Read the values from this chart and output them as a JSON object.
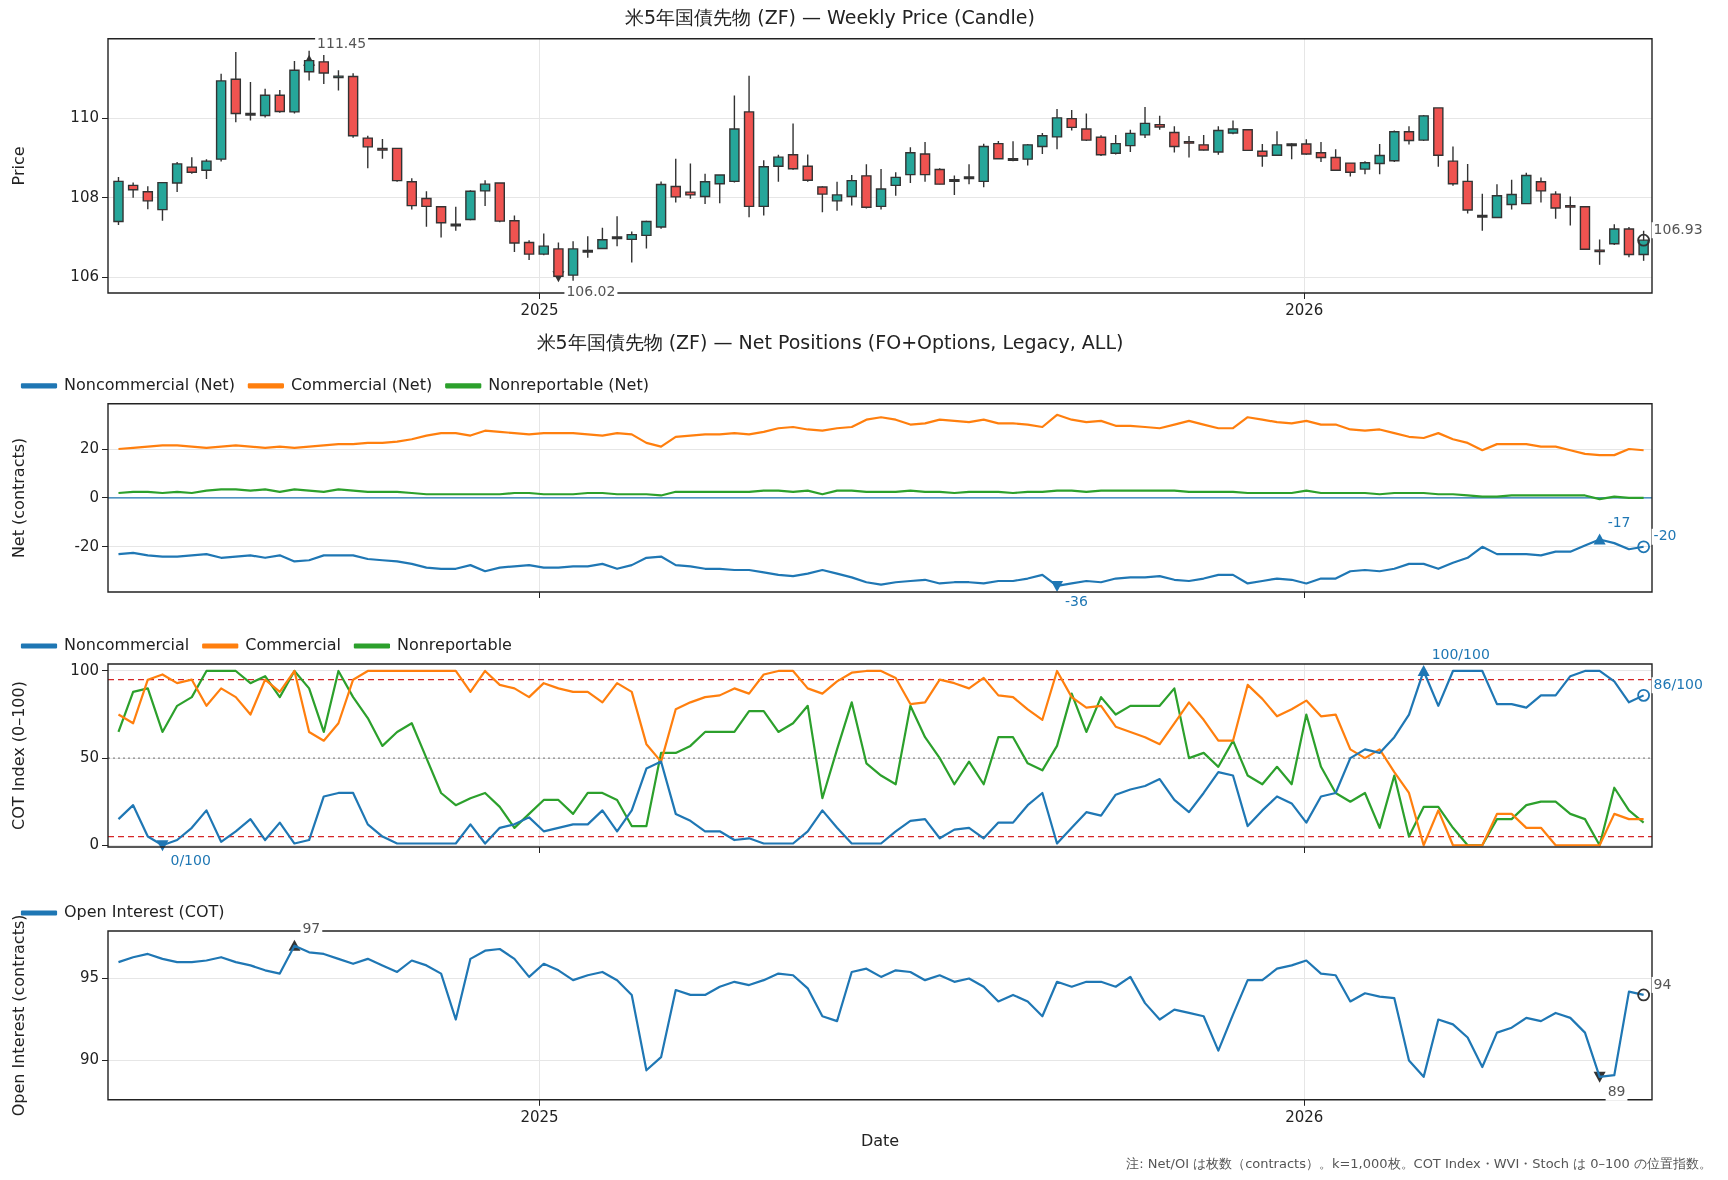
{
  "chart_data": [
    {
      "type": "candlestick",
      "title": "米5年国債先物 (ZF) — Weekly Price (Candle)",
      "ylabel": "Price",
      "x": [
        "2024-06-14",
        "2024-06-21",
        "2024-06-28",
        "2024-07-05",
        "2024-07-12",
        "2024-07-19",
        "2024-07-26",
        "2024-08-02",
        "2024-08-09",
        "2024-08-16",
        "2024-08-23",
        "2024-08-30",
        "2024-09-06",
        "2024-09-13",
        "2024-09-20",
        "2024-09-27",
        "2024-10-04",
        "2024-10-11",
        "2024-10-18",
        "2024-10-25",
        "2024-11-01",
        "2024-11-08",
        "2024-11-15",
        "2024-11-22",
        "2024-11-29",
        "2024-12-06",
        "2024-12-13",
        "2024-12-20",
        "2024-12-27",
        "2025-01-03",
        "2025-01-10",
        "2025-01-17",
        "2025-01-24",
        "2025-01-31",
        "2025-02-07",
        "2025-02-14",
        "2025-02-21",
        "2025-02-28",
        "2025-03-07",
        "2025-03-14",
        "2025-03-21",
        "2025-03-28",
        "2025-04-04",
        "2025-04-11",
        "2025-04-18",
        "2025-04-25",
        "2025-05-02",
        "2025-05-09",
        "2025-05-16",
        "2025-05-23",
        "2025-05-30",
        "2025-06-06",
        "2025-06-13",
        "2025-06-20",
        "2025-06-27",
        "2025-07-04",
        "2025-07-11",
        "2025-07-18",
        "2025-07-25",
        "2025-08-01",
        "2025-08-08",
        "2025-08-15",
        "2025-08-22",
        "2025-08-29",
        "2025-09-05",
        "2025-09-12",
        "2025-09-19",
        "2025-09-26",
        "2025-10-03",
        "2025-10-10",
        "2025-10-17",
        "2025-10-24",
        "2025-10-31",
        "2025-11-07",
        "2025-11-14",
        "2025-11-21",
        "2025-11-28",
        "2025-12-05",
        "2025-12-12",
        "2025-12-19",
        "2025-12-26",
        "2026-01-02",
        "2026-01-09",
        "2026-01-16",
        "2026-01-23",
        "2026-01-30",
        "2026-02-06",
        "2026-02-13",
        "2026-02-20",
        "2026-02-27",
        "2026-03-06",
        "2026-03-13",
        "2026-03-20",
        "2026-03-27",
        "2026-04-03",
        "2026-04-10",
        "2026-04-17",
        "2026-04-24",
        "2026-05-01",
        "2026-05-08",
        "2026-05-15",
        "2026-05-22",
        "2026-05-29",
        "2026-06-05",
        "2026-06-12"
      ],
      "ohlc": [
        [
          107.4,
          108.52,
          107.31,
          108.41
        ],
        [
          108.31,
          108.38,
          108.0,
          108.2
        ],
        [
          108.15,
          108.29,
          107.71,
          107.92
        ],
        [
          107.7,
          108.38,
          107.42,
          108.38
        ],
        [
          108.37,
          108.9,
          108.14,
          108.85
        ],
        [
          108.77,
          109.02,
          108.6,
          108.64
        ],
        [
          108.69,
          108.97,
          108.47,
          108.92
        ],
        [
          108.97,
          111.12,
          108.91,
          110.94
        ],
        [
          110.98,
          111.67,
          109.9,
          110.12
        ],
        [
          110.1,
          110.91,
          109.94,
          110.12
        ],
        [
          110.07,
          110.74,
          110.02,
          110.58
        ],
        [
          110.58,
          110.71,
          110.14,
          110.17
        ],
        [
          110.16,
          111.44,
          110.12,
          111.21
        ],
        [
          111.17,
          111.7,
          110.95,
          111.45
        ],
        [
          111.42,
          111.59,
          110.86,
          111.14
        ],
        [
          111.03,
          111.21,
          110.7,
          111.06
        ],
        [
          111.05,
          111.13,
          109.51,
          109.56
        ],
        [
          109.5,
          109.56,
          108.74,
          109.28
        ],
        [
          109.24,
          109.48,
          108.98,
          109.2
        ],
        [
          109.24,
          109.24,
          108.4,
          108.43
        ],
        [
          108.4,
          108.49,
          107.7,
          107.8
        ],
        [
          107.98,
          108.16,
          107.27,
          107.78
        ],
        [
          107.77,
          107.77,
          107.0,
          107.37
        ],
        [
          107.33,
          107.77,
          107.17,
          107.31
        ],
        [
          107.45,
          108.19,
          107.43,
          108.16
        ],
        [
          108.17,
          108.44,
          107.79,
          108.34
        ],
        [
          108.37,
          108.37,
          107.38,
          107.41
        ],
        [
          107.42,
          107.55,
          106.63,
          106.86
        ],
        [
          106.87,
          106.93,
          106.43,
          106.58
        ],
        [
          106.58,
          107.1,
          106.55,
          106.78
        ],
        [
          106.71,
          106.87,
          105.98,
          106.02
        ],
        [
          106.05,
          106.9,
          105.91,
          106.71
        ],
        [
          106.64,
          107.03,
          106.49,
          106.67
        ],
        [
          106.72,
          107.24,
          106.71,
          106.94
        ],
        [
          106.99,
          107.53,
          106.78,
          107.01
        ],
        [
          106.95,
          107.15,
          106.37,
          107.07
        ],
        [
          107.05,
          107.42,
          106.72,
          107.4
        ],
        [
          107.26,
          108.41,
          107.22,
          108.33
        ],
        [
          108.28,
          108.98,
          107.88,
          108.02
        ],
        [
          108.14,
          108.86,
          107.97,
          108.07
        ],
        [
          108.03,
          108.6,
          107.84,
          108.4
        ],
        [
          108.35,
          108.57,
          107.86,
          108.57
        ],
        [
          108.41,
          110.57,
          108.38,
          109.73
        ],
        [
          110.16,
          111.07,
          107.51,
          107.78
        ],
        [
          107.78,
          108.94,
          107.55,
          108.78
        ],
        [
          108.79,
          109.08,
          108.4,
          109.02
        ],
        [
          109.08,
          109.87,
          108.7,
          108.73
        ],
        [
          108.79,
          109.09,
          108.4,
          108.44
        ],
        [
          108.27,
          108.29,
          107.63,
          108.09
        ],
        [
          107.92,
          108.4,
          107.67,
          108.07
        ],
        [
          108.03,
          108.57,
          107.8,
          108.43
        ],
        [
          108.55,
          108.84,
          107.73,
          107.76
        ],
        [
          107.78,
          108.72,
          107.7,
          108.22
        ],
        [
          108.31,
          108.64,
          108.05,
          108.51
        ],
        [
          108.58,
          109.27,
          108.37,
          109.13
        ],
        [
          109.1,
          109.4,
          108.4,
          108.58
        ],
        [
          108.71,
          108.74,
          108.34,
          108.34
        ],
        [
          108.45,
          108.56,
          108.07,
          108.43
        ],
        [
          108.5,
          108.84,
          108.34,
          108.52
        ],
        [
          108.41,
          109.36,
          108.26,
          109.29
        ],
        [
          109.36,
          109.43,
          108.98,
          108.98
        ],
        [
          108.98,
          109.42,
          108.92,
          108.95
        ],
        [
          108.97,
          109.35,
          108.81,
          109.33
        ],
        [
          109.29,
          109.63,
          109.1,
          109.56
        ],
        [
          109.53,
          110.23,
          109.22,
          110.01
        ],
        [
          109.99,
          110.21,
          109.69,
          109.77
        ],
        [
          109.73,
          110.12,
          109.43,
          109.45
        ],
        [
          109.52,
          109.57,
          109.05,
          109.08
        ],
        [
          109.12,
          109.58,
          109.09,
          109.36
        ],
        [
          109.31,
          109.71,
          109.15,
          109.62
        ],
        [
          109.58,
          110.28,
          109.5,
          109.87
        ],
        [
          109.84,
          110.06,
          109.71,
          109.78
        ],
        [
          109.64,
          109.8,
          109.14,
          109.29
        ],
        [
          109.41,
          109.55,
          109.01,
          109.38
        ],
        [
          109.33,
          109.58,
          109.19,
          109.2
        ],
        [
          109.15,
          109.8,
          109.08,
          109.69
        ],
        [
          109.63,
          109.94,
          109.6,
          109.73
        ],
        [
          109.71,
          109.73,
          109.19,
          109.19
        ],
        [
          109.17,
          109.35,
          108.78,
          109.05
        ],
        [
          109.07,
          109.67,
          109.07,
          109.33
        ],
        [
          109.33,
          109.37,
          108.97,
          109.35
        ],
        [
          109.35,
          109.47,
          109.08,
          109.1
        ],
        [
          109.13,
          109.4,
          108.9,
          109.01
        ],
        [
          109.01,
          109.22,
          108.69,
          108.69
        ],
        [
          108.87,
          108.87,
          108.53,
          108.64
        ],
        [
          108.72,
          108.92,
          108.59,
          108.88
        ],
        [
          108.86,
          109.35,
          108.59,
          109.06
        ],
        [
          108.93,
          109.69,
          108.9,
          109.66
        ],
        [
          109.66,
          109.8,
          109.34,
          109.44
        ],
        [
          109.45,
          110.08,
          109.43,
          110.06
        ],
        [
          110.26,
          110.26,
          108.78,
          109.07
        ],
        [
          108.92,
          109.29,
          108.3,
          108.35
        ],
        [
          108.41,
          108.85,
          107.6,
          107.69
        ],
        [
          107.55,
          108.1,
          107.17,
          107.53
        ],
        [
          107.5,
          108.34,
          107.5,
          108.05
        ],
        [
          107.83,
          108.45,
          107.7,
          108.08
        ],
        [
          107.85,
          108.63,
          107.85,
          108.56
        ],
        [
          108.4,
          108.51,
          107.88,
          108.17
        ],
        [
          108.09,
          108.16,
          107.47,
          107.74
        ],
        [
          107.8,
          108.03,
          107.3,
          107.79
        ],
        [
          107.77,
          107.77,
          106.7,
          106.7
        ],
        [
          106.68,
          106.95,
          106.31,
          106.66
        ],
        [
          106.84,
          107.33,
          106.81,
          107.21
        ],
        [
          107.21,
          107.26,
          106.5,
          106.57
        ],
        [
          106.57,
          107.17,
          106.41,
          106.93
        ]
      ],
      "xlim": [
        "2024-06-09",
        "2026-06-16"
      ],
      "xticks": [
        "2025",
        "2026"
      ],
      "ylim": [
        105.6,
        112.0
      ],
      "yticks": [
        106,
        108,
        110
      ],
      "grid": true,
      "annotations": [
        {
          "text": "111.45",
          "x": "2024-09-13",
          "y": 111.45
        },
        {
          "text": "106.02",
          "x": "2025-01-10",
          "y": 106.02
        },
        {
          "text": "106.93",
          "x": "2026-06-12",
          "y": 106.93
        }
      ]
    },
    {
      "type": "line",
      "title": "米5年国債先物 (ZF) — Net Positions (FO+Options, Legacy, ALL)",
      "ylabel": "Net (contracts)",
      "x": [
        "2024-06-14",
        "2024-06-21",
        "2024-06-28",
        "2024-07-05",
        "2024-07-12",
        "2024-07-19",
        "2024-07-26",
        "2024-08-02",
        "2024-08-09",
        "2024-08-16",
        "2024-08-23",
        "2024-08-30",
        "2024-09-06",
        "2024-09-13",
        "2024-09-20",
        "2024-09-27",
        "2024-10-04",
        "2024-10-11",
        "2024-10-18",
        "2024-10-25",
        "2024-11-01",
        "2024-11-08",
        "2024-11-15",
        "2024-11-22",
        "2024-11-29",
        "2024-12-06",
        "2024-12-13",
        "2024-12-20",
        "2024-12-27",
        "2025-01-03",
        "2025-01-10",
        "2025-01-17",
        "2025-01-24",
        "2025-01-31",
        "2025-02-07",
        "2025-02-14",
        "2025-02-21",
        "2025-02-28",
        "2025-03-07",
        "2025-03-14",
        "2025-03-21",
        "2025-03-28",
        "2025-04-04",
        "2025-04-11",
        "2025-04-18",
        "2025-04-25",
        "2025-05-02",
        "2025-05-09",
        "2025-05-16",
        "2025-05-23",
        "2025-05-30",
        "2025-06-06",
        "2025-06-13",
        "2025-06-20",
        "2025-06-27",
        "2025-07-04",
        "2025-07-11",
        "2025-07-18",
        "2025-07-25",
        "2025-08-01",
        "2025-08-08",
        "2025-08-15",
        "2025-08-22",
        "2025-08-29",
        "2025-09-05",
        "2025-09-12",
        "2025-09-19",
        "2025-09-26",
        "2025-10-03",
        "2025-10-10",
        "2025-10-17",
        "2025-10-24",
        "2025-10-31",
        "2025-11-07",
        "2025-11-14",
        "2025-11-21",
        "2025-11-28",
        "2025-12-05",
        "2025-12-12",
        "2025-12-19",
        "2025-12-26",
        "2026-01-02",
        "2026-01-09",
        "2026-01-16",
        "2026-01-23",
        "2026-01-30",
        "2026-02-06",
        "2026-02-13",
        "2026-02-20",
        "2026-02-27",
        "2026-03-06",
        "2026-03-13",
        "2026-03-20",
        "2026-03-27",
        "2026-04-03",
        "2026-04-10",
        "2026-04-17",
        "2026-04-24",
        "2026-05-01",
        "2026-05-08",
        "2026-05-15",
        "2026-05-22",
        "2026-05-29",
        "2026-06-05",
        "2026-06-12"
      ],
      "series": [
        {
          "name": "Noncommercial (Net)",
          "color": "#1f77b4",
          "values": [
            -23,
            -22.5,
            -23.5,
            -24,
            -24,
            -23.5,
            -23,
            -24.5,
            -24,
            -23.5,
            -24.5,
            -23.5,
            -26,
            -25.5,
            -23.5,
            -23.5,
            -23.5,
            -25,
            -25.5,
            -26,
            -27,
            -28.5,
            -29,
            -29,
            -27.5,
            -30,
            -28.5,
            -28,
            -27.5,
            -28.5,
            -28.5,
            -28,
            -28,
            -27,
            -29,
            -27.5,
            -24.5,
            -24,
            -27.5,
            -28,
            -29,
            -29,
            -29.5,
            -29.5,
            -30.5,
            -31.5,
            -32,
            -31,
            -29.5,
            -31,
            -32.5,
            -34.5,
            -35.5,
            -34.5,
            -34,
            -33.5,
            -35,
            -34.5,
            -34.5,
            -35,
            -34,
            -34,
            -33,
            -31.5,
            -36,
            -35,
            -34,
            -34.5,
            -33,
            -32.5,
            -32.5,
            -32,
            -33.5,
            -34,
            -33,
            -31.5,
            -31.5,
            -35,
            -34,
            -33,
            -33.5,
            -35,
            -33,
            -33,
            -30,
            -29.5,
            -30,
            -29,
            -27,
            -27,
            -29,
            -26.5,
            -24.5,
            -20,
            -23,
            -23,
            -23,
            -23.5,
            -22,
            -22,
            -19.5,
            -17,
            -18.5,
            -21,
            -20
          ]
        },
        {
          "name": "Commercial (Net)",
          "color": "#ff7f0e",
          "values": [
            20,
            20.5,
            21,
            21.5,
            21.5,
            21,
            20.5,
            21,
            21.5,
            21,
            20.5,
            21,
            20.5,
            21,
            21.5,
            22,
            22,
            22.5,
            22.5,
            23,
            24,
            25.5,
            26.5,
            26.5,
            25.5,
            27.5,
            27,
            26.5,
            26,
            26.5,
            26.5,
            26.5,
            26,
            25.5,
            26.5,
            26,
            22.5,
            21,
            25,
            25.5,
            26,
            26,
            26.5,
            26,
            27,
            28.5,
            29,
            28,
            27.5,
            28.5,
            29,
            32,
            33,
            32,
            30,
            30.5,
            32,
            31.5,
            31,
            32,
            30.5,
            30.5,
            30,
            29,
            34,
            32,
            31,
            31.5,
            29.5,
            29.5,
            29,
            28.5,
            30,
            31.5,
            30,
            28.5,
            28.5,
            33,
            32,
            31,
            30.5,
            31.5,
            30,
            30,
            28,
            27.5,
            28,
            26.5,
            25,
            24.5,
            26.5,
            24,
            22.5,
            19.5,
            22,
            22,
            22,
            21,
            21,
            19.5,
            18,
            17.5,
            17.5,
            20,
            19.5
          ]
        },
        {
          "name": "Nonreportable (Net)",
          "color": "#2ca02c",
          "values": [
            2,
            2.5,
            2.5,
            2,
            2.5,
            2,
            3,
            3.5,
            3.5,
            3,
            3.5,
            2.5,
            3.5,
            3,
            2.5,
            3.5,
            3,
            2.5,
            2.5,
            2.5,
            2,
            1.5,
            1.5,
            1.5,
            1.5,
            1.5,
            1.5,
            2,
            2,
            1.5,
            1.5,
            1.5,
            2,
            2,
            1.5,
            1.5,
            1.5,
            1,
            2.5,
            2.5,
            2.5,
            2.5,
            2.5,
            2.5,
            3,
            3,
            2.5,
            3,
            1.5,
            3,
            3,
            2.5,
            2.5,
            2.5,
            3,
            2.5,
            2.5,
            2,
            2.5,
            2.5,
            2.5,
            2,
            2.5,
            2.5,
            3,
            3,
            2.5,
            3,
            3,
            3,
            3,
            3,
            3,
            2.5,
            2.5,
            2.5,
            2.5,
            2,
            2,
            2,
            2,
            3,
            2,
            2,
            2,
            2,
            1.5,
            2,
            2,
            2,
            1.5,
            1.5,
            1,
            0.5,
            0.5,
            1,
            1,
            1,
            1,
            1,
            1,
            -0.5,
            0.5,
            0,
            0
          ]
        }
      ],
      "xlim": [
        "2024-06-09",
        "2026-06-16"
      ],
      "xticks": [
        "2025",
        "2026"
      ],
      "ylim": [
        -38.5,
        38.5
      ],
      "yticks": [
        -20,
        0,
        20
      ],
      "grid": true,
      "legend": "top left",
      "tick_labels": "y",
      "ref_lines": [
        {
          "axis": "y",
          "value": 0,
          "color": "#1f77b4",
          "line_style": "solid"
        }
      ],
      "annotations": [
        {
          "text": "-17",
          "x": "2026-05-22",
          "y": -17
        },
        {
          "text": "-36",
          "x": "2025-09-05",
          "y": -36
        },
        {
          "text": "-20",
          "x": "2026-06-12",
          "y": -20
        }
      ]
    },
    {
      "type": "line",
      "ylabel": "COT Index (0–100)",
      "x": [
        "2024-06-14",
        "2024-06-21",
        "2024-06-28",
        "2024-07-05",
        "2024-07-12",
        "2024-07-19",
        "2024-07-26",
        "2024-08-02",
        "2024-08-09",
        "2024-08-16",
        "2024-08-23",
        "2024-08-30",
        "2024-09-06",
        "2024-09-13",
        "2024-09-20",
        "2024-09-27",
        "2024-10-04",
        "2024-10-11",
        "2024-10-18",
        "2024-10-25",
        "2024-11-01",
        "2024-11-08",
        "2024-11-15",
        "2024-11-22",
        "2024-11-29",
        "2024-12-06",
        "2024-12-13",
        "2024-12-20",
        "2024-12-27",
        "2025-01-03",
        "2025-01-10",
        "2025-01-17",
        "2025-01-24",
        "2025-01-31",
        "2025-02-07",
        "2025-02-14",
        "2025-02-21",
        "2025-02-28",
        "2025-03-07",
        "2025-03-14",
        "2025-03-21",
        "2025-03-28",
        "2025-04-04",
        "2025-04-11",
        "2025-04-18",
        "2025-04-25",
        "2025-05-02",
        "2025-05-09",
        "2025-05-16",
        "2025-05-23",
        "2025-05-30",
        "2025-06-06",
        "2025-06-13",
        "2025-06-20",
        "2025-06-27",
        "2025-07-04",
        "2025-07-11",
        "2025-07-18",
        "2025-07-25",
        "2025-08-01",
        "2025-08-08",
        "2025-08-15",
        "2025-08-22",
        "2025-08-29",
        "2025-09-05",
        "2025-09-12",
        "2025-09-19",
        "2025-09-26",
        "2025-10-03",
        "2025-10-10",
        "2025-10-17",
        "2025-10-24",
        "2025-10-31",
        "2025-11-07",
        "2025-11-14",
        "2025-11-21",
        "2025-11-28",
        "2025-12-05",
        "2025-12-12",
        "2025-12-19",
        "2025-12-26",
        "2026-01-02",
        "2026-01-09",
        "2026-01-16",
        "2026-01-23",
        "2026-01-30",
        "2026-02-06",
        "2026-02-13",
        "2026-02-20",
        "2026-02-27",
        "2026-03-06",
        "2026-03-13",
        "2026-03-20",
        "2026-03-27",
        "2026-04-03",
        "2026-04-10",
        "2026-04-17",
        "2026-04-24",
        "2026-05-01",
        "2026-05-08",
        "2026-05-15",
        "2026-05-22",
        "2026-05-29",
        "2026-06-05",
        "2026-06-12"
      ],
      "series": [
        {
          "name": "Noncommercial",
          "color": "#1f77b4",
          "values": [
            15,
            23,
            5,
            0,
            3,
            10,
            20,
            2,
            8,
            15,
            3,
            13,
            1,
            3,
            28,
            30,
            30,
            12,
            5,
            1,
            1,
            1,
            1,
            1,
            12,
            1,
            10,
            12,
            16,
            8,
            10,
            12,
            12,
            20,
            8,
            20,
            44,
            48,
            18,
            14,
            8,
            8,
            3,
            4,
            1,
            1,
            1,
            8,
            20,
            10,
            1,
            1,
            1,
            8,
            14,
            15,
            4,
            9,
            10,
            4,
            13,
            13,
            23,
            30,
            1,
            10,
            19,
            17,
            29,
            32,
            34,
            38,
            26,
            19,
            30,
            42,
            40,
            11,
            20,
            28,
            24,
            13,
            28,
            30,
            50,
            55,
            53,
            62,
            75,
            100,
            80,
            100,
            100,
            100,
            81,
            81,
            79,
            86,
            86,
            97,
            100,
            100,
            94,
            82,
            86
          ]
        },
        {
          "name": "Commercial",
          "color": "#ff7f0e",
          "values": [
            75,
            70,
            95,
            98,
            93,
            95,
            80,
            90,
            85,
            75,
            95,
            88,
            100,
            65,
            60,
            70,
            95,
            100,
            100,
            100,
            100,
            100,
            100,
            100,
            88,
            100,
            92,
            90,
            85,
            93,
            90,
            88,
            88,
            82,
            93,
            88,
            58,
            48,
            78,
            82,
            85,
            86,
            90,
            87,
            98,
            100,
            100,
            90,
            87,
            94,
            99,
            100,
            100,
            96,
            81,
            82,
            95,
            93,
            90,
            96,
            86,
            85,
            78,
            72,
            100,
            85,
            79,
            80,
            68,
            65,
            62,
            58,
            70,
            82,
            72,
            60,
            60,
            92,
            84,
            74,
            78,
            83,
            74,
            75,
            55,
            50,
            55,
            42,
            30,
            0,
            20,
            0,
            0,
            0,
            18,
            18,
            10,
            10,
            0,
            0,
            0,
            0,
            18,
            15,
            15
          ]
        },
        {
          "name": "Nonreportable",
          "color": "#2ca02c",
          "values": [
            65,
            88,
            90,
            65,
            80,
            85,
            100,
            100,
            100,
            93,
            97,
            85,
            100,
            90,
            65,
            100,
            85,
            73,
            57,
            65,
            70,
            50,
            30,
            23,
            27,
            30,
            22,
            10,
            18,
            26,
            26,
            18,
            30,
            30,
            26,
            11,
            11,
            53,
            53,
            57,
            65,
            65,
            65,
            77,
            77,
            65,
            70,
            80,
            27,
            55,
            82,
            47,
            40,
            35,
            80,
            62,
            50,
            35,
            48,
            35,
            62,
            62,
            47,
            43,
            57,
            87,
            65,
            85,
            75,
            80,
            80,
            80,
            90,
            50,
            53,
            45,
            60,
            40,
            35,
            45,
            35,
            75,
            45,
            30,
            25,
            30,
            10,
            40,
            5,
            22,
            22,
            10,
            0,
            0,
            15,
            15,
            23,
            25,
            25,
            18,
            15,
            0,
            33,
            20,
            13
          ]
        }
      ],
      "xlim": [
        "2024-06-09",
        "2026-06-16"
      ],
      "xticks": [
        "2025",
        "2026"
      ],
      "ylim": [
        -1,
        104
      ],
      "yticks": [
        0,
        50,
        100
      ],
      "grid": true,
      "legend": "top left",
      "tick_labels": "y",
      "ref_lines": [
        {
          "axis": "y",
          "value": 95,
          "color": "#d62728",
          "line_style": "dashed"
        },
        {
          "axis": "y",
          "value": 5,
          "color": "#d62728",
          "line_style": "dashed"
        },
        {
          "axis": "y",
          "value": 50,
          "color": "#888888",
          "line_style": "dotted"
        }
      ],
      "annotations": [
        {
          "text": "0/100",
          "x": "2024-07-05",
          "y": 0
        },
        {
          "text": "100/100",
          "x": "2026-02-27",
          "y": 100
        },
        {
          "text": "86/100",
          "x": "2026-06-12",
          "y": 86
        }
      ]
    },
    {
      "type": "line",
      "ylabel": "Open Interest (contracts)",
      "xlabel": "Date",
      "x": [
        "2024-06-14",
        "2024-06-21",
        "2024-06-28",
        "2024-07-05",
        "2024-07-12",
        "2024-07-19",
        "2024-07-26",
        "2024-08-02",
        "2024-08-09",
        "2024-08-16",
        "2024-08-23",
        "2024-08-30",
        "2024-09-06",
        "2024-09-13",
        "2024-09-20",
        "2024-09-27",
        "2024-10-04",
        "2024-10-11",
        "2024-10-18",
        "2024-10-25",
        "2024-11-01",
        "2024-11-08",
        "2024-11-15",
        "2024-11-22",
        "2024-11-29",
        "2024-12-06",
        "2024-12-13",
        "2024-12-20",
        "2024-12-27",
        "2025-01-03",
        "2025-01-10",
        "2025-01-17",
        "2025-01-24",
        "2025-01-31",
        "2025-02-07",
        "2025-02-14",
        "2025-02-21",
        "2025-02-28",
        "2025-03-07",
        "2025-03-14",
        "2025-03-21",
        "2025-03-28",
        "2025-04-04",
        "2025-04-11",
        "2025-04-18",
        "2025-04-25",
        "2025-05-02",
        "2025-05-09",
        "2025-05-16",
        "2025-05-23",
        "2025-05-30",
        "2025-06-06",
        "2025-06-13",
        "2025-06-20",
        "2025-06-27",
        "2025-07-04",
        "2025-07-11",
        "2025-07-18",
        "2025-07-25",
        "2025-08-01",
        "2025-08-08",
        "2025-08-15",
        "2025-08-22",
        "2025-08-29",
        "2025-09-05",
        "2025-09-12",
        "2025-09-19",
        "2025-09-26",
        "2025-10-03",
        "2025-10-10",
        "2025-10-17",
        "2025-10-24",
        "2025-10-31",
        "2025-11-07",
        "2025-11-14",
        "2025-11-21",
        "2025-11-28",
        "2025-12-05",
        "2025-12-12",
        "2025-12-19",
        "2025-12-26",
        "2026-01-02",
        "2026-01-09",
        "2026-01-16",
        "2026-01-23",
        "2026-01-30",
        "2026-02-06",
        "2026-02-13",
        "2026-02-20",
        "2026-02-27",
        "2026-03-06",
        "2026-03-13",
        "2026-03-20",
        "2026-03-27",
        "2026-04-03",
        "2026-04-10",
        "2026-04-17",
        "2026-04-24",
        "2026-05-01",
        "2026-05-08",
        "2026-05-15",
        "2026-05-22",
        "2026-05-29",
        "2026-06-05",
        "2026-06-12"
      ],
      "series": [
        {
          "name": "Open Interest (COT)",
          "color": "#1f77b4",
          "values": [
            96,
            96.3,
            96.5,
            96.2,
            96,
            96,
            96.1,
            96.3,
            96,
            95.8,
            95.5,
            95.3,
            97,
            96.6,
            96.5,
            96.2,
            95.9,
            96.2,
            95.8,
            95.4,
            96.1,
            95.8,
            95.3,
            92.5,
            96.2,
            96.7,
            96.8,
            96.2,
            95.1,
            95.9,
            95.5,
            94.9,
            95.2,
            95.4,
            94.9,
            94,
            89.4,
            90.2,
            94.3,
            94,
            94,
            94.5,
            94.8,
            94.6,
            94.9,
            95.3,
            95.2,
            94.4,
            92.7,
            92.4,
            95.4,
            95.6,
            95.1,
            95.5,
            95.4,
            94.9,
            95.2,
            94.8,
            95,
            94.5,
            93.6,
            94,
            93.6,
            92.7,
            94.8,
            94.5,
            94.8,
            94.8,
            94.5,
            95.1,
            93.5,
            92.5,
            93.1,
            92.9,
            92.7,
            90.6,
            92.8,
            94.9,
            94.9,
            95.6,
            95.8,
            96.1,
            95.3,
            95.2,
            93.6,
            94.1,
            93.9,
            93.8,
            90,
            89,
            92.5,
            92.2,
            91.4,
            89.6,
            91.7,
            92,
            92.6,
            92.4,
            92.9,
            92.6,
            91.7,
            89,
            89.1,
            94.2,
            94
          ]
        }
      ],
      "xlim": [
        "2024-06-09",
        "2026-06-16"
      ],
      "xticks": [
        "2025",
        "2026"
      ],
      "ylim": [
        87.6,
        97.9
      ],
      "yticks": [
        90,
        95
      ],
      "grid": true,
      "legend": "top left",
      "annotations": [
        {
          "text": "97",
          "x": "2024-09-06",
          "y": 97
        },
        {
          "text": "89",
          "x": "2026-05-22",
          "y": 89
        },
        {
          "text": "94",
          "x": "2026-06-12",
          "y": 94
        },
        "注: Net/OI は枚数（contracts）。k=1,000枚。COT Index・WVI・Stoch は 0–100 の位置指数。"
      ]
    }
  ]
}
